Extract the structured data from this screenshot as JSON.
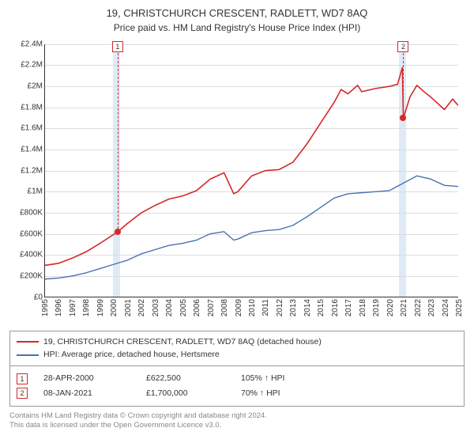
{
  "title": "19, CHRISTCHURCH CRESCENT, RADLETT, WD7 8AQ",
  "subtitle": "Price paid vs. HM Land Registry's House Price Index (HPI)",
  "chart": {
    "type": "line",
    "x_domain": [
      1995,
      2025
    ],
    "y_domain": [
      0,
      2400000
    ],
    "y_ticks": [
      {
        "v": 0,
        "label": "£0"
      },
      {
        "v": 200000,
        "label": "£200K"
      },
      {
        "v": 400000,
        "label": "£400K"
      },
      {
        "v": 600000,
        "label": "£600K"
      },
      {
        "v": 800000,
        "label": "£800K"
      },
      {
        "v": 1000000,
        "label": "£1M"
      },
      {
        "v": 1200000,
        "label": "£1.2M"
      },
      {
        "v": 1400000,
        "label": "£1.4M"
      },
      {
        "v": 1600000,
        "label": "£1.6M"
      },
      {
        "v": 1800000,
        "label": "£1.8M"
      },
      {
        "v": 2000000,
        "label": "£2M"
      },
      {
        "v": 2200000,
        "label": "£2.2M"
      },
      {
        "v": 2400000,
        "label": "£2.4M"
      }
    ],
    "x_ticks": [
      1995,
      1996,
      1997,
      1998,
      1999,
      2000,
      2001,
      2002,
      2003,
      2004,
      2005,
      2006,
      2007,
      2008,
      2009,
      2010,
      2011,
      2012,
      2013,
      2014,
      2015,
      2016,
      2017,
      2018,
      2019,
      2020,
      2021,
      2022,
      2023,
      2024,
      2025
    ],
    "vertical_bands": [
      {
        "from": 2000.0,
        "to": 2000.5
      },
      {
        "from": 2020.7,
        "to": 2021.2
      }
    ],
    "grid_color": "#dddddd",
    "band_color": "#dfeaf5",
    "bg_color": "#ffffff",
    "series": [
      {
        "name": "price_paid",
        "label": "19, CHRISTCHURCH CRESCENT, RADLETT, WD7 8AQ (detached house)",
        "color": "#d62728",
        "width": 1.6,
        "points": [
          [
            1995,
            300000
          ],
          [
            1996,
            320000
          ],
          [
            1997,
            370000
          ],
          [
            1998,
            430000
          ],
          [
            1999,
            510000
          ],
          [
            2000.32,
            622500
          ],
          [
            2001,
            700000
          ],
          [
            2002,
            800000
          ],
          [
            2003,
            870000
          ],
          [
            2004,
            930000
          ],
          [
            2005,
            960000
          ],
          [
            2006,
            1010000
          ],
          [
            2007,
            1120000
          ],
          [
            2008,
            1180000
          ],
          [
            2008.7,
            980000
          ],
          [
            2009,
            1000000
          ],
          [
            2010,
            1150000
          ],
          [
            2011,
            1200000
          ],
          [
            2012,
            1210000
          ],
          [
            2013,
            1280000
          ],
          [
            2014,
            1450000
          ],
          [
            2015,
            1650000
          ],
          [
            2016,
            1850000
          ],
          [
            2016.5,
            1970000
          ],
          [
            2017,
            1930000
          ],
          [
            2017.7,
            2010000
          ],
          [
            2018,
            1950000
          ],
          [
            2019,
            1980000
          ],
          [
            2020,
            2000000
          ],
          [
            2020.6,
            2020000
          ],
          [
            2020.95,
            2180000
          ],
          [
            2021.02,
            1700000
          ],
          [
            2021.5,
            1900000
          ],
          [
            2022,
            2010000
          ],
          [
            2022.7,
            1930000
          ],
          [
            2023,
            1900000
          ],
          [
            2024,
            1780000
          ],
          [
            2024.6,
            1880000
          ],
          [
            2025,
            1820000
          ]
        ]
      },
      {
        "name": "hpi",
        "label": "HPI: Average price, detached house, Hertsmere",
        "color": "#4a72b2",
        "width": 1.4,
        "points": [
          [
            1995,
            170000
          ],
          [
            1996,
            180000
          ],
          [
            1997,
            200000
          ],
          [
            1998,
            230000
          ],
          [
            1999,
            270000
          ],
          [
            2000,
            310000
          ],
          [
            2001,
            350000
          ],
          [
            2002,
            410000
          ],
          [
            2003,
            450000
          ],
          [
            2004,
            490000
          ],
          [
            2005,
            510000
          ],
          [
            2006,
            540000
          ],
          [
            2007,
            600000
          ],
          [
            2008,
            620000
          ],
          [
            2008.7,
            540000
          ],
          [
            2009,
            550000
          ],
          [
            2010,
            610000
          ],
          [
            2011,
            630000
          ],
          [
            2012,
            640000
          ],
          [
            2013,
            680000
          ],
          [
            2014,
            760000
          ],
          [
            2015,
            850000
          ],
          [
            2016,
            940000
          ],
          [
            2017,
            980000
          ],
          [
            2018,
            990000
          ],
          [
            2019,
            1000000
          ],
          [
            2020,
            1010000
          ],
          [
            2021,
            1080000
          ],
          [
            2022,
            1150000
          ],
          [
            2023,
            1120000
          ],
          [
            2024,
            1060000
          ],
          [
            2025,
            1050000
          ]
        ]
      }
    ],
    "markers": [
      {
        "id": "1",
        "x": 2000.32,
        "y": 622500,
        "color": "#d62728"
      },
      {
        "id": "2",
        "x": 2021.02,
        "y": 1700000,
        "color": "#d62728"
      }
    ]
  },
  "legend": {
    "items": [
      {
        "color": "#d62728",
        "label": "19, CHRISTCHURCH CRESCENT, RADLETT, WD7 8AQ (detached house)"
      },
      {
        "color": "#4a72b2",
        "label": "HPI: Average price, detached house, Hertsmere"
      }
    ]
  },
  "transactions": {
    "hpi_suffix": "HPI",
    "rows": [
      {
        "id": "1",
        "color": "#d62728",
        "date": "28-APR-2000",
        "price": "£622,500",
        "pct": "105%"
      },
      {
        "id": "2",
        "color": "#d62728",
        "date": "08-JAN-2021",
        "price": "£1,700,000",
        "pct": "70%"
      }
    ]
  },
  "footer": {
    "line1": "Contains HM Land Registry data © Crown copyright and database right 2024.",
    "line2": "This data is licensed under the Open Government Licence v3.0."
  }
}
